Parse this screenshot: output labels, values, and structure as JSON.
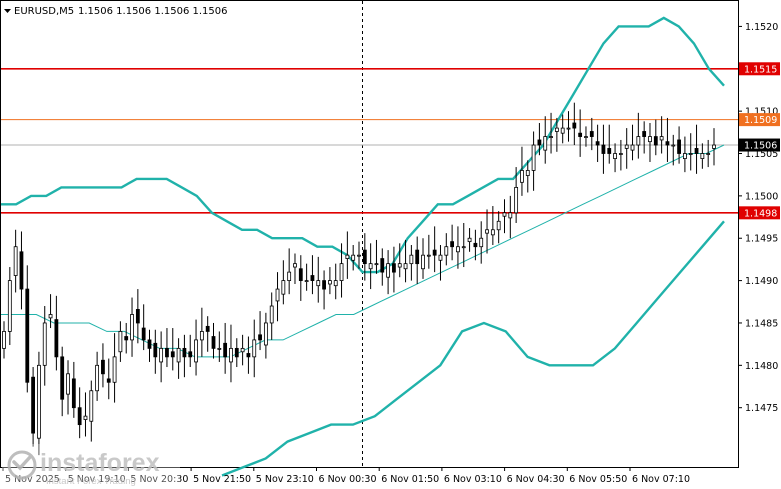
{
  "header": {
    "symbol": "EURUSD,M5",
    "ohlc": "1.1506 1.1506 1.1506 1.1506"
  },
  "watermark": {
    "brand": "instaforex",
    "tagline": "Instant Forex Trading"
  },
  "colors": {
    "candle": "#000000",
    "bollinger": "#20b2aa",
    "hline": "#e00000",
    "hline_orange": "#f07020",
    "price_line": "#b0b0b0",
    "axis": "#000000"
  },
  "chart_data": {
    "type": "candlestick",
    "ylim": [
      1.1468,
      1.1523
    ],
    "y_ticks": [
      "1.1520",
      "1.1515",
      "1.1510",
      "1.1505",
      "1.1500",
      "1.1495",
      "1.1490",
      "1.1485",
      "1.1480",
      "1.1475"
    ],
    "y_tick_values": [
      1.152,
      1.1515,
      1.151,
      1.1505,
      1.15,
      1.1495,
      1.149,
      1.1485,
      1.148,
      1.1475
    ],
    "x_ticks": [
      "5 Nov 2025",
      "5 Nov 19:10",
      "5 Nov 20:30",
      "5 Nov 21:50",
      "5 Nov 23:10",
      "6 Nov 00:30",
      "6 Nov 01:50",
      "6 Nov 03:10",
      "6 Nov 04:30",
      "6 Nov 05:50",
      "6 Nov 07:10"
    ],
    "levels": [
      {
        "label": "1.1515",
        "value": 1.1515,
        "color": "#e00000"
      },
      {
        "label": "1.1509",
        "value": 1.1509,
        "color": "#f07020"
      },
      {
        "label": "1.1498",
        "value": 1.1498,
        "color": "#e00000"
      }
    ],
    "current_price": {
      "label": "1.1506",
      "value": 1.1506
    },
    "closes": [
      1.1484,
      1.149,
      1.1494,
      1.1489,
      1.1478,
      1.1472,
      1.148,
      1.1485,
      1.1486,
      1.1481,
      1.1476,
      1.1479,
      1.1475,
      1.1473,
      1.1474,
      1.1477,
      1.148,
      1.1479,
      1.1478,
      1.1481,
      1.1484,
      1.1483,
      1.1486,
      1.1485,
      1.1483,
      1.1482,
      1.1481,
      1.1482,
      1.1481,
      1.1481,
      1.1482,
      1.1481,
      1.1481,
      1.1483,
      1.1484,
      1.1484,
      1.1482,
      1.1482,
      1.1481,
      1.1482,
      1.1481,
      1.1482,
      1.1481,
      1.1483,
      1.1483,
      1.1485,
      1.1487,
      1.1489,
      1.149,
      1.1491,
      1.1492,
      1.149,
      1.149,
      1.149,
      1.149,
      1.1489,
      1.149,
      1.149,
      1.1492,
      1.1493,
      1.1493,
      1.1493,
      1.1492,
      1.1492,
      1.1492,
      1.1491,
      1.1492,
      1.1491,
      1.1492,
      1.1492,
      1.1493,
      1.1492,
      1.1493,
      1.1493,
      1.1493,
      1.1493,
      1.1494,
      1.1494,
      1.1494,
      1.1494,
      1.1495,
      1.1494,
      1.1495,
      1.1496,
      1.1496,
      1.1497,
      1.1498,
      1.1498,
      1.1501,
      1.1503,
      1.1503,
      1.1506,
      1.1506,
      1.1507,
      1.1507,
      1.1508,
      1.1508,
      1.1508,
      1.1508,
      1.1507,
      1.1507,
      1.1507,
      1.1506,
      1.1505,
      1.1505,
      1.1505,
      1.1505,
      1.1506,
      1.1506,
      1.1507,
      1.1507,
      1.1507,
      1.1506,
      1.1507,
      1.1506,
      1.1506,
      1.1505,
      1.1505,
      1.1505,
      1.1505,
      1.1505,
      1.1505,
      1.1506
    ],
    "bollinger_upper": [
      1.1499,
      1.1499,
      1.15,
      1.15,
      1.1501,
      1.1501,
      1.1501,
      1.1501,
      1.1501,
      1.1502,
      1.1502,
      1.1502,
      1.1501,
      1.15,
      1.1498,
      1.1497,
      1.1496,
      1.1496,
      1.1495,
      1.1495,
      1.1495,
      1.1494,
      1.1494,
      1.1493,
      1.1491,
      1.1491,
      1.1492,
      1.1495,
      1.1497,
      1.1499,
      1.1499,
      1.15,
      1.1501,
      1.1502,
      1.1502,
      1.1504,
      1.1506,
      1.1509,
      1.1512,
      1.1515,
      1.1518,
      1.152,
      1.152,
      1.152,
      1.1521,
      1.152,
      1.1518,
      1.1515,
      1.1513
    ],
    "bollinger_middle": [
      1.1486,
      1.1486,
      1.1486,
      1.1485,
      1.1485,
      1.1485,
      1.1484,
      1.1484,
      1.1483,
      1.1482,
      1.1482,
      1.1481,
      1.1481,
      1.1481,
      1.1482,
      1.1483,
      1.1483,
      1.1484,
      1.1485,
      1.1486,
      1.1486,
      1.1487,
      1.1488,
      1.1489,
      1.149,
      1.1491,
      1.1492,
      1.1493,
      1.1494,
      1.1495,
      1.1496,
      1.1497,
      1.1498,
      1.1499,
      1.15,
      1.1501,
      1.1502,
      1.1503,
      1.1504,
      1.1505,
      1.1505,
      1.1506
    ],
    "bollinger_lower": [
      1.1467,
      1.1468,
      1.1469,
      1.1471,
      1.1472,
      1.1473,
      1.1473,
      1.1474,
      1.1476,
      1.1478,
      1.148,
      1.1484,
      1.1485,
      1.1484,
      1.1481,
      1.148,
      1.148,
      1.148,
      1.1482,
      1.1485,
      1.1488,
      1.1491,
      1.1494,
      1.1497
    ]
  }
}
